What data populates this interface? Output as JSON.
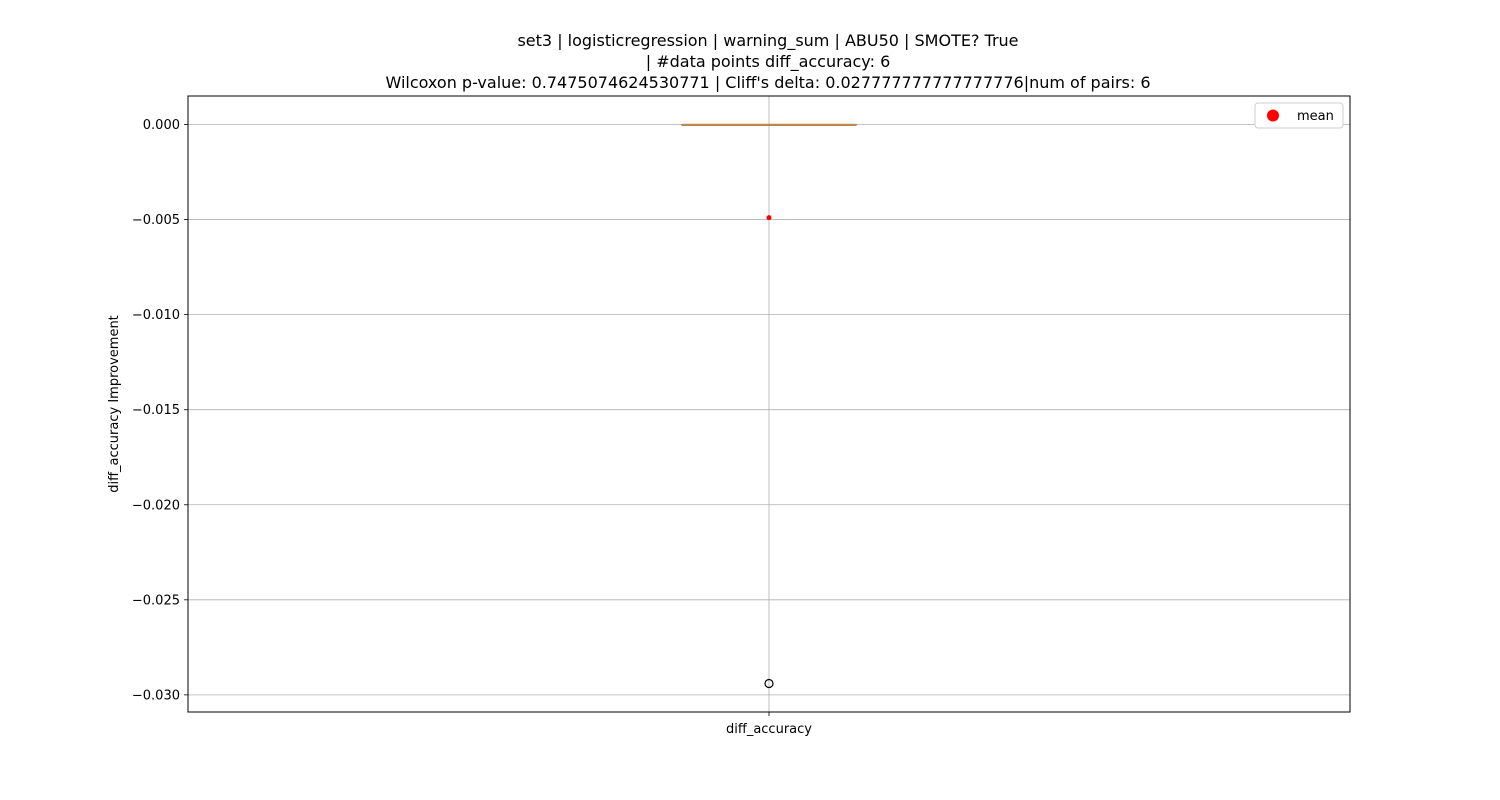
{
  "chart_data": {
    "type": "box",
    "title_lines": [
      "set3 | logisticregression | warning_sum | ABU50 | SMOTE? True",
      "| #data points diff_accuracy: 6",
      "Wilcoxon p-value: 0.7475074624530771 | Cliff's delta: 0.027777777777777776|num of pairs: 6"
    ],
    "xlabel": "",
    "ylabel": "diff_accuracy Improvement",
    "categories": [
      "diff_accuracy"
    ],
    "ylim": [
      -0.0309,
      0.0015
    ],
    "yticks": [
      0.0,
      -0.005,
      -0.01,
      -0.015,
      -0.02,
      -0.025,
      -0.03
    ],
    "ytick_labels": [
      "0.000",
      "−0.005",
      "−0.010",
      "−0.015",
      "−0.020",
      "−0.025",
      "−0.030"
    ],
    "grid": true,
    "box": {
      "q1": 0.0,
      "median": 0.0,
      "q3": 0.0,
      "whisker_low": 0.0,
      "whisker_high": 0.0,
      "mean": -0.0049,
      "outliers": [
        -0.0294
      ]
    },
    "legend": {
      "position": "top-right",
      "entries": [
        {
          "label": "mean",
          "color": "#ff0000",
          "marker": "circle"
        }
      ]
    },
    "colors": {
      "box": "#1f77b4",
      "median": "#ff7f0e",
      "mean": "#ff0000",
      "grid": "#b0b0b0"
    }
  }
}
